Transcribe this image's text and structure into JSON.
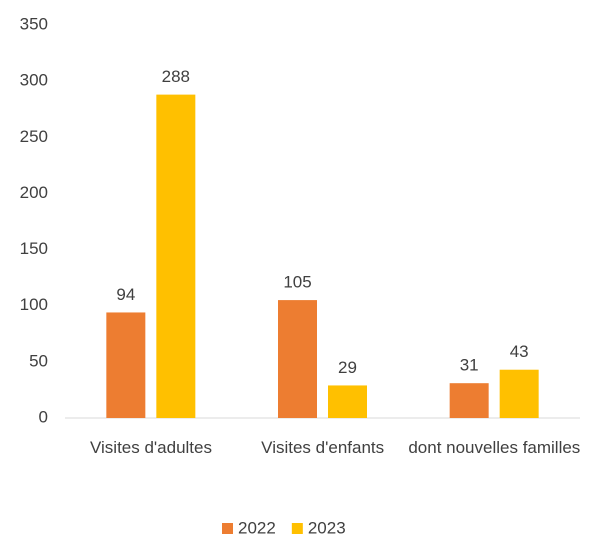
{
  "chart_data": {
    "type": "bar",
    "categories": [
      "Visites d'adultes",
      "Visites d'enfants",
      "dont nouvelles familles"
    ],
    "series": [
      {
        "name": "2022",
        "color": "#ED7D31",
        "values": [
          94,
          105,
          31
        ]
      },
      {
        "name": "2023",
        "color": "#FFC000",
        "values": [
          288,
          29,
          43
        ]
      }
    ],
    "ylim": [
      0,
      350
    ],
    "yticks": [
      0,
      50,
      100,
      150,
      200,
      250,
      300,
      350
    ],
    "grid": false,
    "data_labels": true,
    "legend": "bottom"
  }
}
